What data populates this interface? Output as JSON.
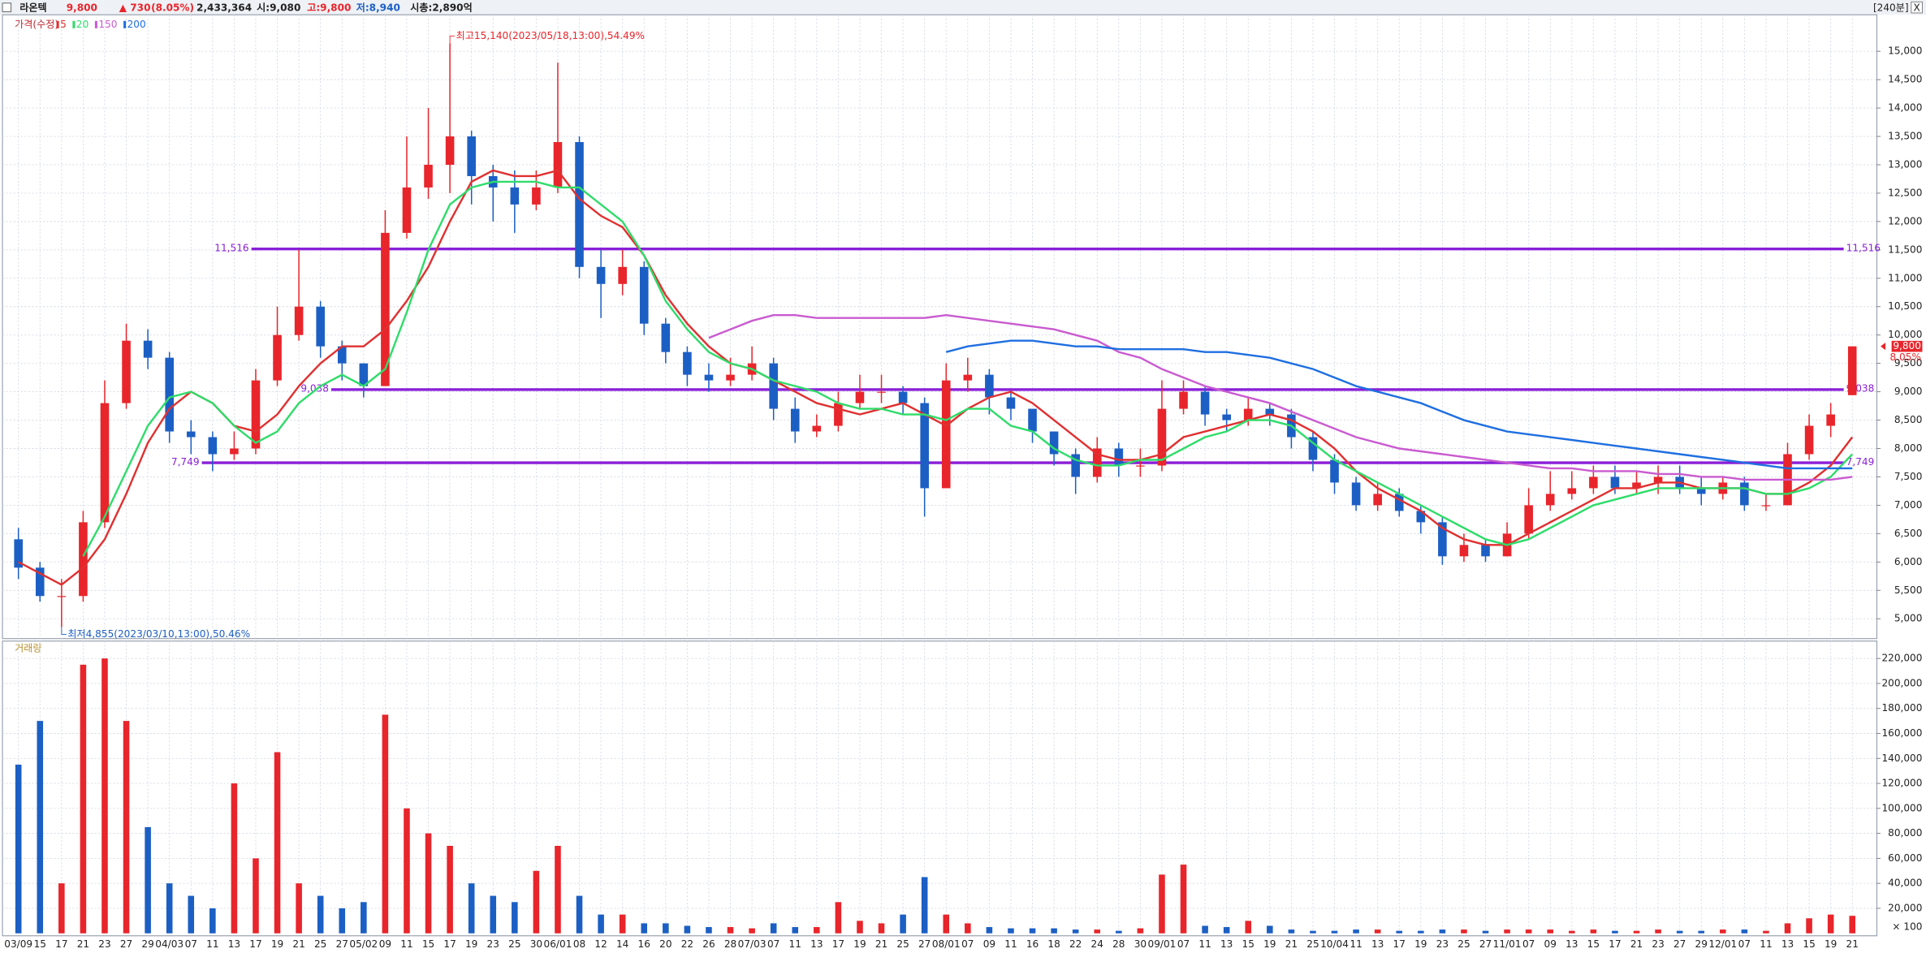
{
  "header": {
    "name": "라온텍",
    "price": "9,800",
    "change": "▲ 730",
    "change_pct": "(8.05%)",
    "volume": "2,433,364",
    "open": "시:9,080",
    "high": "고:9,800",
    "low": "저:8,940",
    "market_cap": "시총:2,890억",
    "interval": "[240분]",
    "close_button": "X"
  },
  "chart_data": [
    {
      "type": "candlestick",
      "title": "가격(수정)",
      "up_color": "#e8252b",
      "down_color": "#1c5fc4",
      "categories": [
        "03/09",
        "15",
        "17",
        "21",
        "23",
        "27",
        "29",
        "04/03",
        "07",
        "11",
        "13",
        "17",
        "19",
        "21",
        "25",
        "27",
        "05/02",
        "09",
        "11",
        "15",
        "17",
        "19",
        "23",
        "25",
        "30",
        "06/01",
        "08",
        "12",
        "14",
        "16",
        "20",
        "22",
        "26",
        "28",
        "07/03",
        "07",
        "11",
        "13",
        "17",
        "19",
        "21",
        "25",
        "27",
        "08/01",
        "07",
        "09",
        "11",
        "16",
        "18",
        "22",
        "24",
        "28",
        "30",
        "09/01",
        "07",
        "11",
        "13",
        "15",
        "19",
        "21",
        "25",
        "10/04",
        "11",
        "13",
        "17",
        "19",
        "23",
        "25",
        "27",
        "11/01",
        "07",
        "09",
        "13",
        "15",
        "17",
        "21",
        "23",
        "27",
        "29",
        "12/01",
        "07",
        "11",
        "13",
        "15",
        "19",
        "21"
      ],
      "open": [
        6400,
        5900,
        5400,
        5400,
        6700,
        8800,
        9900,
        9600,
        8300,
        8200,
        7900,
        8000,
        9200,
        10000,
        10500,
        9800,
        9500,
        9100,
        11800,
        12600,
        13000,
        13500,
        12800,
        12600,
        12300,
        12600,
        13400,
        11200,
        10900,
        11200,
        10200,
        9700,
        9300,
        9200,
        9300,
        9500,
        8700,
        8300,
        8400,
        8800,
        9000,
        9000,
        8800,
        7300,
        9200,
        9300,
        8900,
        8700,
        8300,
        7900,
        7500,
        8000,
        7700,
        7700,
        8700,
        9000,
        8600,
        8500,
        8700,
        8600,
        8200,
        7800,
        7400,
        7000,
        7200,
        6900,
        6700,
        6100,
        6300,
        6100,
        6500,
        7000,
        7200,
        7300,
        7500,
        7300,
        7400,
        7500,
        7300,
        7200,
        7400,
        7000,
        7000,
        7900,
        8400,
        8940
      ],
      "high": [
        6600,
        6000,
        5700,
        6900,
        9200,
        10200,
        10100,
        9700,
        8500,
        8300,
        8300,
        9400,
        10500,
        11500,
        10600,
        9900,
        9500,
        12200,
        13500,
        14000,
        15140,
        13600,
        13000,
        12900,
        12900,
        14800,
        13500,
        11500,
        11500,
        11300,
        10300,
        9800,
        9500,
        9600,
        9800,
        9600,
        8900,
        8600,
        9000,
        9300,
        9300,
        9100,
        8900,
        9500,
        9600,
        9400,
        9000,
        8600,
        8300,
        8000,
        8200,
        8100,
        8000,
        9200,
        9200,
        9100,
        8700,
        8900,
        8800,
        8700,
        8300,
        7900,
        7500,
        7400,
        7300,
        7000,
        6800,
        6500,
        6400,
        6700,
        7300,
        7600,
        7600,
        7700,
        7700,
        7600,
        7700,
        7700,
        7500,
        7500,
        7500,
        7200,
        8100,
        8600,
        8800,
        9800
      ],
      "low": [
        5700,
        5300,
        4855,
        5300,
        6600,
        8700,
        9400,
        8100,
        7900,
        7600,
        7800,
        7900,
        9100,
        9900,
        9600,
        9200,
        8900,
        9100,
        11700,
        12400,
        12500,
        12300,
        12000,
        11800,
        12200,
        12500,
        11000,
        10300,
        10700,
        10000,
        9500,
        9100,
        9000,
        9100,
        9200,
        8500,
        8100,
        8200,
        8300,
        8700,
        8800,
        8600,
        6800,
        7300,
        9000,
        8600,
        8500,
        8100,
        7700,
        7200,
        7400,
        7500,
        7500,
        7600,
        8600,
        8400,
        8300,
        8400,
        8400,
        8000,
        7600,
        7200,
        6900,
        6900,
        6800,
        6500,
        5950,
        6000,
        6000,
        6100,
        6400,
        6900,
        7100,
        7200,
        7200,
        7200,
        7200,
        7200,
        7000,
        7100,
        6900,
        6900,
        7000,
        7800,
        8200,
        8940
      ],
      "close": [
        5900,
        5400,
        5400,
        6700,
        8800,
        9900,
        9600,
        8300,
        8200,
        7900,
        8000,
        9200,
        10000,
        10500,
        9800,
        9500,
        9100,
        11800,
        12600,
        13000,
        13500,
        12800,
        12600,
        12300,
        12600,
        13400,
        11200,
        10900,
        11200,
        10200,
        9700,
        9300,
        9200,
        9300,
        9500,
        8700,
        8300,
        8400,
        8800,
        9000,
        9000,
        8800,
        7300,
        9200,
        9300,
        8900,
        8700,
        8300,
        7900,
        7500,
        8000,
        7700,
        7700,
        8700,
        9000,
        8600,
        8500,
        8700,
        8600,
        8200,
        7800,
        7400,
        7000,
        7200,
        6900,
        6700,
        6100,
        6300,
        6100,
        6500,
        7000,
        7200,
        7300,
        7500,
        7300,
        7400,
        7500,
        7300,
        7200,
        7400,
        7000,
        7000,
        7900,
        8400,
        8600,
        9800
      ],
      "series": [
        {
          "name": "5",
          "color": "#e03030",
          "values": [
            6000,
            5800,
            5600,
            5900,
            6400,
            7200,
            8100,
            8700,
            9000,
            8800,
            8400,
            8300,
            8600,
            9100,
            9500,
            9800,
            9800,
            10100,
            10600,
            11200,
            12000,
            12700,
            12900,
            12800,
            12800,
            12900,
            12400,
            12100,
            11900,
            11400,
            10700,
            10200,
            9800,
            9500,
            9400,
            9200,
            9000,
            8800,
            8700,
            8600,
            8700,
            8800,
            8600,
            8400,
            8700,
            8900,
            9000,
            8800,
            8500,
            8200,
            7900,
            7800,
            7800,
            7900,
            8200,
            8300,
            8400,
            8500,
            8600,
            8500,
            8300,
            8000,
            7600,
            7300,
            7100,
            6900,
            6600,
            6400,
            6300,
            6300,
            6500,
            6700,
            6900,
            7100,
            7300,
            7300,
            7400,
            7400,
            7300,
            7300,
            7300,
            7200,
            7200,
            7400,
            7700,
            8200
          ]
        },
        {
          "name": "20",
          "color": "#2fdc6a",
          "values": [
            null,
            null,
            null,
            6100,
            6800,
            7600,
            8400,
            8900,
            9000,
            8800,
            8400,
            8100,
            8300,
            8800,
            9100,
            9300,
            9100,
            9400,
            10400,
            11500,
            12300,
            12600,
            12700,
            12700,
            12700,
            12600,
            12600,
            12300,
            12000,
            11400,
            10600,
            10100,
            9700,
            9500,
            9400,
            9200,
            9100,
            9000,
            8800,
            8700,
            8700,
            8600,
            8600,
            8500,
            8700,
            8700,
            8400,
            8300,
            8000,
            7800,
            7700,
            7700,
            7800,
            7800,
            8000,
            8200,
            8300,
            8500,
            8500,
            8400,
            8100,
            7800,
            7600,
            7400,
            7200,
            7000,
            6800,
            6600,
            6400,
            6300,
            6400,
            6600,
            6800,
            7000,
            7100,
            7200,
            7300,
            7300,
            7300,
            7300,
            7300,
            7200,
            7200,
            7300,
            7500,
            7900
          ]
        },
        {
          "name": "150",
          "color": "#c95bd0",
          "values": [
            null,
            null,
            null,
            null,
            null,
            null,
            null,
            null,
            null,
            null,
            null,
            null,
            null,
            null,
            null,
            null,
            null,
            null,
            null,
            null,
            null,
            null,
            null,
            null,
            null,
            null,
            null,
            null,
            null,
            null,
            null,
            null,
            9950,
            10100,
            10250,
            10350,
            10350,
            10300,
            10300,
            10300,
            10300,
            10300,
            10300,
            10350,
            10300,
            10250,
            10200,
            10150,
            10100,
            10000,
            9900,
            9700,
            9600,
            9400,
            9250,
            9100,
            9000,
            8900,
            8800,
            8650,
            8500,
            8350,
            8200,
            8100,
            8000,
            7950,
            7900,
            7850,
            7800,
            7750,
            7700,
            7650,
            7650,
            7600,
            7600,
            7600,
            7550,
            7550,
            7500,
            7500,
            7450,
            7450,
            7450,
            7450,
            7450,
            7500
          ]
        },
        {
          "name": "200",
          "color": "#1f6fe0",
          "values": [
            null,
            null,
            null,
            null,
            null,
            null,
            null,
            null,
            null,
            null,
            null,
            null,
            null,
            null,
            null,
            null,
            null,
            null,
            null,
            null,
            null,
            null,
            null,
            null,
            null,
            null,
            null,
            null,
            null,
            null,
            null,
            null,
            null,
            null,
            null,
            null,
            null,
            null,
            null,
            null,
            null,
            null,
            null,
            9700,
            9800,
            9850,
            9900,
            9900,
            9850,
            9800,
            9800,
            9750,
            9750,
            9750,
            9750,
            9700,
            9700,
            9650,
            9600,
            9500,
            9400,
            9250,
            9100,
            9000,
            8900,
            8800,
            8650,
            8500,
            8400,
            8300,
            8250,
            8200,
            8150,
            8100,
            8050,
            8000,
            7950,
            7900,
            7850,
            7800,
            7750,
            7700,
            7650,
            7650,
            7650,
            7650
          ]
        }
      ],
      "hlines": [
        {
          "value": 11516,
          "label": "11,516"
        },
        {
          "value": 9038,
          "label": "9,038"
        },
        {
          "value": 7749,
          "label": "7,749"
        }
      ],
      "hline_color": "#8a1fd8",
      "annotations": {
        "max": "최고15,140(2023/05/18,13:00),54.49%",
        "min": "최저4,855(2023/03/10,13:00),50.46%"
      },
      "last_price": {
        "value": 9800,
        "label": "9,800",
        "change": "8.05%"
      },
      "ylim": [
        4650,
        15600
      ],
      "yticks": [
        {
          "value": 5000,
          "label": "5,000"
        },
        {
          "value": 5500,
          "label": "5,500"
        },
        {
          "value": 6000,
          "label": "6,000"
        },
        {
          "value": 6500,
          "label": "6,500"
        },
        {
          "value": 7000,
          "label": "7,000"
        },
        {
          "value": 7500,
          "label": "7,500"
        },
        {
          "value": 8000,
          "label": "8,000"
        },
        {
          "value": 8500,
          "label": "8,500"
        },
        {
          "value": 9000,
          "label": "9,000"
        },
        {
          "value": 9500,
          "label": "9,500"
        },
        {
          "value": 10000,
          "label": "10,000"
        },
        {
          "value": 10500,
          "label": "10,500"
        },
        {
          "value": 11000,
          "label": "11,000"
        },
        {
          "value": 11500,
          "label": "11,500"
        },
        {
          "value": 12000,
          "label": "12,000"
        },
        {
          "value": 12500,
          "label": "12,500"
        },
        {
          "value": 13000,
          "label": "13,000"
        },
        {
          "value": 13500,
          "label": "13,500"
        },
        {
          "value": 14000,
          "label": "14,000"
        },
        {
          "value": 14500,
          "label": "14,500"
        },
        {
          "value": 15000,
          "label": "15,000"
        }
      ],
      "grid": true
    },
    {
      "type": "bar",
      "title": "거래량",
      "unit_label": "× 100",
      "values": [
        135000,
        170000,
        40000,
        215000,
        220000,
        170000,
        85000,
        40000,
        30000,
        20000,
        120000,
        60000,
        145000,
        40000,
        30000,
        20000,
        25000,
        175000,
        100000,
        80000,
        70000,
        40000,
        30000,
        25000,
        50000,
        70000,
        30000,
        15000,
        15000,
        8000,
        8000,
        6000,
        5000,
        5000,
        4000,
        8000,
        5000,
        5000,
        25000,
        10000,
        8000,
        15000,
        45000,
        15000,
        8000,
        5000,
        4000,
        4000,
        4000,
        3000,
        3000,
        2000,
        4000,
        47000,
        55000,
        6000,
        5000,
        10000,
        6000,
        3000,
        2000,
        2000,
        3000,
        3000,
        2000,
        2000,
        3000,
        3000,
        2000,
        3000,
        3000,
        3000,
        2000,
        3000,
        2000,
        2000,
        3000,
        2000,
        2000,
        3000,
        3000,
        2000,
        8000,
        12000,
        15000,
        14000
      ],
      "ylim": [
        0,
        230000
      ],
      "yticks": [
        {
          "value": 20000,
          "label": "20,000"
        },
        {
          "value": 40000,
          "label": "40,000"
        },
        {
          "value": 60000,
          "label": "60,000"
        },
        {
          "value": 80000,
          "label": "80,000"
        },
        {
          "value": 100000,
          "label": "100,000"
        },
        {
          "value": 120000,
          "label": "120,000"
        },
        {
          "value": 140000,
          "label": "140,000"
        },
        {
          "value": 160000,
          "label": "160,000"
        },
        {
          "value": 180000,
          "label": "180,000"
        },
        {
          "value": 200000,
          "label": "200,000"
        },
        {
          "value": 220000,
          "label": "220,000"
        }
      ],
      "grid": true
    }
  ]
}
